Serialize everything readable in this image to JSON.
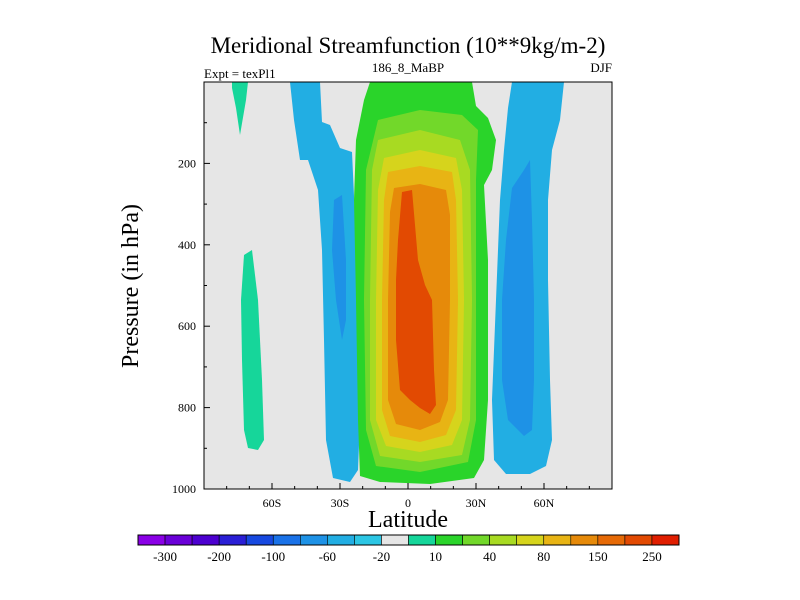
{
  "chart_data": {
    "type": "contour",
    "title": "Meridional Streamfunction (10**9kg/m-2)",
    "subtitle_left": "Expt = texPl1",
    "subtitle_center": "186_8_MaBP",
    "subtitle_right": "DJF",
    "xlabel": "Latitude",
    "ylabel": "Pressure (in hPa)",
    "xlim": [
      -90,
      90
    ],
    "ylim": [
      0,
      1000
    ],
    "y_inverted": true,
    "x_ticks": [
      {
        "value": -60,
        "label": "60S"
      },
      {
        "value": -30,
        "label": "30S"
      },
      {
        "value": 0,
        "label": "0"
      },
      {
        "value": 30,
        "label": "30N"
      },
      {
        "value": 60,
        "label": "60N"
      }
    ],
    "y_ticks": [
      {
        "value": 200,
        "label": "200"
      },
      {
        "value": 400,
        "label": "400"
      },
      {
        "value": 600,
        "label": "600"
      },
      {
        "value": 800,
        "label": "800"
      },
      {
        "value": 1000,
        "label": "1000"
      }
    ],
    "colorbar": {
      "colors": [
        "#8a00e6",
        "#6a00d8",
        "#4c00d0",
        "#2a1fd6",
        "#1749e0",
        "#1a72e8",
        "#1e92e6",
        "#22aee3",
        "#2cc6e4",
        "#e6e6e6",
        "#16d69a",
        "#2ad42a",
        "#72d82a",
        "#a8da22",
        "#d6d41c",
        "#e8b414",
        "#e68a0a",
        "#e66a06",
        "#e24a02",
        "#e01e00"
      ],
      "labels": [
        "-300",
        "-200",
        "-100",
        "-60",
        "-20",
        "10",
        "40",
        "80",
        "150",
        "250"
      ]
    },
    "background": "#e6e6e6",
    "grid": false,
    "legend": "colorbar-bottom"
  }
}
